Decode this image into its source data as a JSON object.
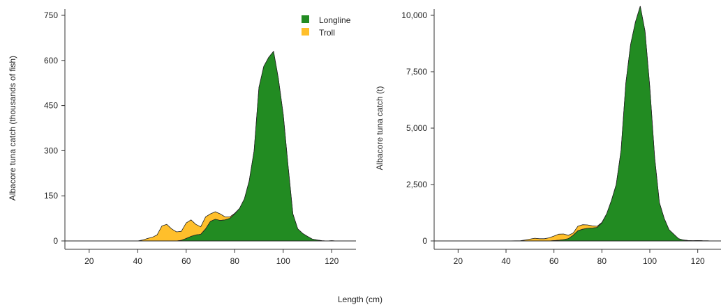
{
  "shared_xlabel": "Length (cm)",
  "colors": {
    "longline": "#228B22",
    "troll": "#FFBF2B",
    "stroke": "#222222"
  },
  "legend": [
    {
      "name": "Longline",
      "color": "#228B22"
    },
    {
      "name": "Troll",
      "color": "#FFBF2B"
    }
  ],
  "chart_data": [
    {
      "type": "area",
      "stacked": true,
      "ylabel": "Albacore tuna catch (thousands of fish)",
      "xlim": [
        10,
        130
      ],
      "ylim": [
        0,
        750
      ],
      "xticks": [
        20,
        40,
        60,
        80,
        100,
        120
      ],
      "yticks": [
        0,
        150,
        300,
        450,
        600,
        750
      ],
      "ytick_labels": [
        "0",
        "150",
        "300",
        "450",
        "600",
        "750"
      ],
      "grid": false,
      "legend_position": "top-right",
      "x": [
        10,
        20,
        30,
        40,
        42,
        44,
        46,
        48,
        50,
        52,
        54,
        56,
        58,
        60,
        62,
        64,
        66,
        68,
        70,
        72,
        74,
        76,
        78,
        80,
        82,
        84,
        86,
        88,
        90,
        92,
        94,
        96,
        98,
        100,
        102,
        104,
        106,
        108,
        110,
        112,
        114,
        116,
        118,
        120,
        122,
        124,
        126,
        128,
        130
      ],
      "series": [
        {
          "name": "Longline",
          "values": [
            0,
            0,
            0,
            0,
            0,
            0,
            0,
            0,
            0,
            0,
            0,
            0,
            2,
            8,
            15,
            20,
            22,
            40,
            65,
            72,
            68,
            70,
            75,
            90,
            108,
            140,
            200,
            300,
            510,
            580,
            610,
            630,
            540,
            420,
            250,
            90,
            40,
            25,
            15,
            6,
            3,
            1,
            0,
            1,
            0,
            0,
            0,
            0,
            0
          ]
        },
        {
          "name": "Troll",
          "values": [
            0,
            0,
            0,
            0,
            3,
            8,
            12,
            20,
            50,
            55,
            40,
            30,
            30,
            52,
            55,
            35,
            25,
            40,
            25,
            25,
            22,
            10,
            5,
            2,
            0,
            0,
            0,
            0,
            0,
            0,
            0,
            0,
            0,
            0,
            0,
            0,
            0,
            0,
            0,
            0,
            0,
            0,
            0,
            0,
            0,
            0,
            0,
            0,
            0
          ]
        }
      ]
    },
    {
      "type": "area",
      "stacked": true,
      "ylabel": "Albacore tuna catch (t)",
      "xlim": [
        10,
        130
      ],
      "ylim": [
        0,
        10000
      ],
      "xticks": [
        20,
        40,
        60,
        80,
        100,
        120
      ],
      "yticks": [
        0,
        2500,
        5000,
        7500,
        10000
      ],
      "ytick_labels": [
        "0",
        "2,500",
        "5,000",
        "7,500",
        "10,000"
      ],
      "grid": false,
      "x": [
        10,
        20,
        30,
        40,
        46,
        48,
        50,
        52,
        54,
        56,
        58,
        60,
        62,
        64,
        66,
        68,
        70,
        72,
        74,
        76,
        78,
        80,
        82,
        84,
        86,
        88,
        90,
        92,
        94,
        96,
        98,
        100,
        102,
        104,
        106,
        108,
        110,
        112,
        114,
        116,
        118,
        120,
        122,
        124,
        126,
        128,
        130
      ],
      "series": [
        {
          "name": "Longline",
          "values": [
            0,
            0,
            0,
            0,
            0,
            0,
            0,
            0,
            0,
            0,
            0,
            15,
            30,
            60,
            100,
            250,
            450,
            520,
            560,
            570,
            600,
            800,
            1200,
            1800,
            2500,
            4000,
            7000,
            8700,
            9700,
            10400,
            9300,
            6800,
            3700,
            1700,
            1000,
            500,
            300,
            100,
            40,
            20,
            10,
            20,
            10,
            5,
            0,
            0,
            0
          ]
        },
        {
          "name": "Troll",
          "values": [
            0,
            0,
            0,
            0,
            10,
            40,
            80,
            120,
            100,
            100,
            140,
            200,
            270,
            250,
            150,
            100,
            200,
            200,
            150,
            100,
            50,
            20,
            0,
            0,
            0,
            0,
            0,
            0,
            0,
            0,
            0,
            0,
            0,
            0,
            0,
            0,
            0,
            0,
            0,
            0,
            0,
            0,
            0,
            0,
            0,
            0,
            0
          ]
        }
      ]
    }
  ]
}
